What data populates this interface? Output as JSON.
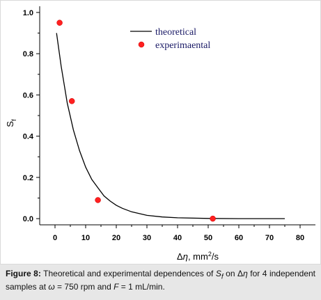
{
  "chart_data": {
    "type": "scatter",
    "ylabel": "S",
    "ylabel_subscript": "f",
    "xlabel_pre": "Δ",
    "xlabel_sym": "η",
    "xlabel_unit": ", mm",
    "xlabel_sup": "2",
    "xlabel_tail": "/s",
    "xlim": [
      -5,
      85
    ],
    "ylim": [
      -0.03,
      1.03
    ],
    "x_ticks": [
      0,
      10,
      20,
      30,
      40,
      50,
      60,
      70,
      80
    ],
    "y_ticks": [
      "0.0",
      "0.2",
      "0.4",
      "0.6",
      "0.8",
      "1.0"
    ],
    "legend_position": "top-right",
    "series": [
      {
        "name": "theoretical",
        "kind": "line",
        "color": "#000000",
        "x": [
          0.5,
          2,
          4,
          6,
          8,
          10,
          12,
          14,
          16,
          18,
          20,
          22,
          25,
          30,
          35,
          40,
          50,
          60,
          75
        ],
        "y": [
          0.9,
          0.74,
          0.56,
          0.43,
          0.33,
          0.25,
          0.19,
          0.15,
          0.11,
          0.085,
          0.065,
          0.05,
          0.033,
          0.016,
          0.008,
          0.004,
          0.001,
          0.0,
          0.0
        ]
      },
      {
        "name": "experimaental",
        "kind": "scatter",
        "color": "#ff2020",
        "x": [
          1.5,
          5.5,
          14,
          51.5
        ],
        "y": [
          0.95,
          0.57,
          0.09,
          0.0
        ]
      }
    ]
  },
  "caption": {
    "label": "Figure 8:",
    "text_1": " Theoretical and experimental dependences of ",
    "S": "S",
    "S_sub": "f",
    "text_2": " on Δ",
    "eta": "η",
    "text_3": " for 4 independent samples at ",
    "omega": "ω",
    "text_4": " = 750 rpm and ",
    "F": "F",
    "text_5": " = 1 mL/min."
  }
}
